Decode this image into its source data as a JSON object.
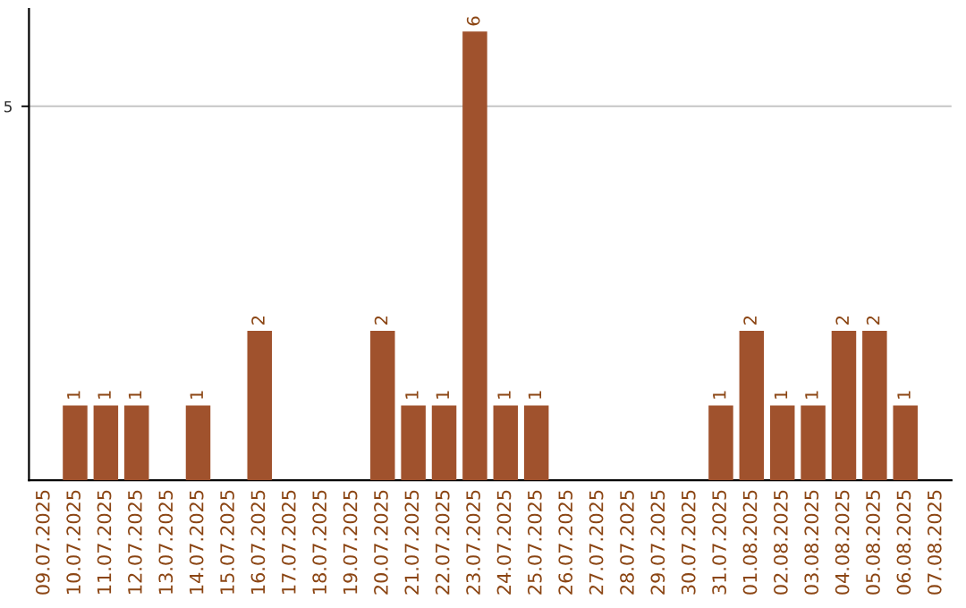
{
  "chart_data": {
    "type": "bar",
    "categories": [
      "09.07.2025",
      "10.07.2025",
      "11.07.2025",
      "12.07.2025",
      "13.07.2025",
      "14.07.2025",
      "15.07.2025",
      "16.07.2025",
      "17.07.2025",
      "18.07.2025",
      "19.07.2025",
      "20.07.2025",
      "21.07.2025",
      "22.07.2025",
      "23.07.2025",
      "24.07.2025",
      "25.07.2025",
      "26.07.2025",
      "27.07.2025",
      "28.07.2025",
      "29.07.2025",
      "30.07.2025",
      "31.07.2025",
      "01.08.2025",
      "02.08.2025",
      "03.08.2025",
      "04.08.2025",
      "05.08.2025",
      "06.08.2025",
      "07.08.2025"
    ],
    "values": [
      0,
      1,
      1,
      1,
      0,
      1,
      0,
      2,
      0,
      0,
      0,
      2,
      1,
      1,
      6,
      1,
      1,
      0,
      0,
      0,
      0,
      0,
      1,
      2,
      1,
      1,
      2,
      2,
      1,
      0
    ],
    "value_labels": [
      null,
      "1",
      "1",
      "1",
      null,
      "1",
      null,
      "2",
      null,
      null,
      null,
      "2",
      "1",
      "1",
      "6",
      "1",
      "1",
      null,
      null,
      null,
      null,
      null,
      "1",
      "2",
      "1",
      "1",
      "2",
      "2",
      "1",
      null
    ],
    "color": "#a0522d",
    "ylim": [
      0,
      6.3
    ],
    "yticks": [
      5
    ],
    "grid": "y"
  }
}
